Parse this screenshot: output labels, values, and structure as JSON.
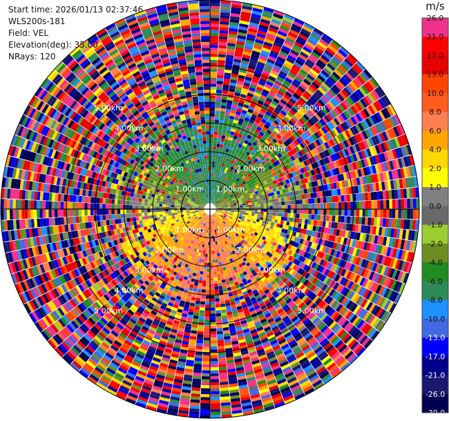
{
  "header": {
    "start_time": "Start time: 2026/01/13 02:37:46",
    "instrument": "WLS200s-181",
    "field": "Field: VEL",
    "elevation": "Elevation(deg): 35.00",
    "nrays": "NRays: 120"
  },
  "colorbar": {
    "unit": "m/s",
    "labels": [
      "26.0",
      "21.0",
      "17.0",
      "13.0",
      "10.0",
      "8.0",
      "6.0",
      "4.0",
      "2.0",
      "1.0",
      "0.0",
      "-1.0",
      "-2.0",
      "-4.0",
      "-6.0",
      "-8.0",
      "-10.0",
      "-13.0",
      "-17.0",
      "-21.0",
      "-26.0",
      "-30.0"
    ],
    "colors": [
      "#f0328c",
      "#ff0000",
      "#e60000",
      "#ff4500",
      "#ff5b1f",
      "#ff7f50",
      "#ffa500",
      "#ffd700",
      "#ffff00",
      "#808080",
      "#696969",
      "#9acd32",
      "#6b8e23",
      "#228b22",
      "#2e8b57",
      "#1e90ff",
      "#4169e1",
      "#0000ff",
      "#00008b",
      "#191970",
      "#000050"
    ]
  },
  "chart_data": {
    "type": "ppi",
    "field": "VEL",
    "units": "m/s",
    "nrays": 120,
    "elevation_deg": 35.0,
    "range_rings_km": [
      1.0,
      2.0,
      3.0,
      4.0,
      5.0
    ],
    "ring_label_texts": [
      "1.00km",
      "2.00km",
      "3.00km",
      "4.00km",
      "5.00km"
    ],
    "max_range_km": 7.0,
    "vmin": -30.0,
    "vmax": 26.0
  }
}
